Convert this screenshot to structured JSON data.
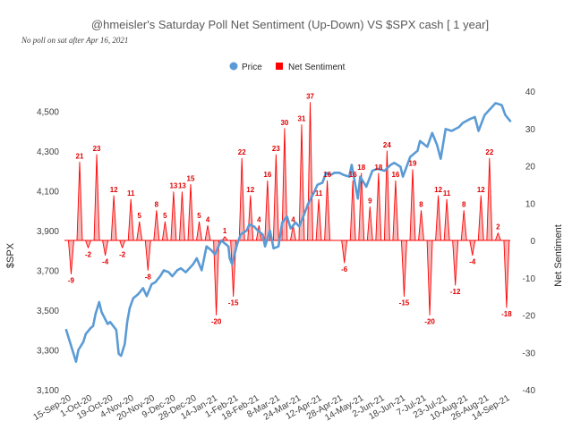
{
  "chart_data": {
    "type": "line",
    "title": "@hmeisler's Saturday Poll Net Sentiment (Up-Down) VS $SPX  cash [ 1 year]",
    "subtitle": "No poll on sat after  Apr 16, 2021",
    "ylabel_left": "$SPX",
    "ylabel_right": "Net Sentiment",
    "ylim_left": [
      3100,
      4600
    ],
    "ylim_right": [
      -40,
      40
    ],
    "yticks_left": [
      "3,100",
      "3,300",
      "3,500",
      "3,700",
      "3,900",
      "4,100",
      "4,300",
      "4,500"
    ],
    "yticks_right": [
      "-40",
      "-30",
      "-20",
      "-10",
      "0",
      "10",
      "20",
      "30",
      "40"
    ],
    "x_tick_labels": [
      "15-Sep-20",
      "1-Oct-20",
      "19-Oct-20",
      "4-Nov-20",
      "20-Nov-20",
      "9-Dec-20",
      "28-Dec-20",
      "14-Jan-21",
      "1-Feb-21",
      "18-Feb-21",
      "8-Mar-21",
      "24-Mar-21",
      "12-Apr-21",
      "28-Apr-21",
      "14-May-21",
      "2-Jun-21",
      "18-Jun-21",
      "7-Jul-21",
      "23-Jul-21",
      "10-Aug-21",
      "26-Aug-21",
      "14-Sep-21"
    ],
    "legend_position": "top-center",
    "colors": {
      "price": "#5b9bd5",
      "sentiment": "#ff0000",
      "sentiment_fill": "#f4b6b6"
    },
    "series": [
      {
        "name": "Price",
        "axis": "left",
        "x": [
          "2020-09-15",
          "2020-09-17",
          "2020-09-21",
          "2020-09-23",
          "2020-09-25",
          "2020-09-29",
          "2020-10-01",
          "2020-10-05",
          "2020-10-07",
          "2020-10-09",
          "2020-10-12",
          "2020-10-14",
          "2020-10-19",
          "2020-10-21",
          "2020-10-26",
          "2020-10-28",
          "2020-10-30",
          "2020-11-02",
          "2020-11-04",
          "2020-11-06",
          "2020-11-09",
          "2020-11-13",
          "2020-11-17",
          "2020-11-20",
          "2020-11-24",
          "2020-11-27",
          "2020-12-01",
          "2020-12-04",
          "2020-12-08",
          "2020-12-11",
          "2020-12-15",
          "2020-12-18",
          "2020-12-22",
          "2020-12-28",
          "2020-12-31",
          "2021-01-04",
          "2021-01-06",
          "2021-01-08",
          "2021-01-12",
          "2021-01-15",
          "2021-01-20",
          "2021-01-22",
          "2021-01-26",
          "2021-01-27",
          "2021-01-29",
          "2021-02-02",
          "2021-02-05",
          "2021-02-10",
          "2021-02-12",
          "2021-02-16",
          "2021-02-19",
          "2021-02-23",
          "2021-02-25",
          "2021-03-01",
          "2021-03-04",
          "2021-03-08",
          "2021-03-11",
          "2021-03-15",
          "2021-03-18",
          "2021-03-22",
          "2021-03-25",
          "2021-03-29",
          "2021-04-01",
          "2021-04-06",
          "2021-04-09",
          "2021-04-13",
          "2021-04-16",
          "2021-04-20",
          "2021-04-23",
          "2021-04-27",
          "2021-04-30",
          "2021-05-05",
          "2021-05-07",
          "2021-05-12",
          "2021-05-14",
          "2021-05-19",
          "2021-05-24",
          "2021-05-28",
          "2021-06-03",
          "2021-06-08",
          "2021-06-11",
          "2021-06-16",
          "2021-06-18",
          "2021-06-24",
          "2021-06-30",
          "2021-07-02",
          "2021-07-08",
          "2021-07-12",
          "2021-07-16",
          "2021-07-19",
          "2021-07-23",
          "2021-07-28",
          "2021-08-03",
          "2021-08-06",
          "2021-08-12",
          "2021-08-16",
          "2021-08-19",
          "2021-08-24",
          "2021-08-30",
          "2021-09-02",
          "2021-09-07",
          "2021-09-10",
          "2021-09-14"
        ],
        "values": [
          3400,
          3360,
          3280,
          3240,
          3300,
          3340,
          3380,
          3410,
          3420,
          3480,
          3540,
          3490,
          3430,
          3440,
          3400,
          3280,
          3270,
          3330,
          3440,
          3510,
          3560,
          3580,
          3610,
          3570,
          3630,
          3640,
          3670,
          3700,
          3690,
          3670,
          3700,
          3710,
          3690,
          3730,
          3760,
          3700,
          3760,
          3820,
          3800,
          3780,
          3850,
          3840,
          3820,
          3760,
          3730,
          3830,
          3880,
          3900,
          3930,
          3920,
          3900,
          3880,
          3820,
          3900,
          3810,
          3820,
          3940,
          3970,
          3910,
          3940,
          3920,
          3980,
          4030,
          4090,
          4130,
          4140,
          4190,
          4180,
          4190,
          4190,
          4180,
          4170,
          4230,
          4060,
          4170,
          4120,
          4200,
          4210,
          4200,
          4230,
          4240,
          4220,
          4170,
          4270,
          4300,
          4350,
          4320,
          4390,
          4330,
          4260,
          4410,
          4400,
          4420,
          4440,
          4460,
          4470,
          4400,
          4480,
          4520,
          4540,
          4530,
          4480,
          4450
        ]
      },
      {
        "name": "Net Sentiment",
        "axis": "right",
        "x": [
          "2020-09-19",
          "2020-09-26",
          "2020-10-03",
          "2020-10-10",
          "2020-10-17",
          "2020-10-24",
          "2020-10-31",
          "2020-11-07",
          "2020-11-14",
          "2020-11-21",
          "2020-11-28",
          "2020-12-05",
          "2020-12-12",
          "2020-12-19",
          "2020-12-26",
          "2021-01-02",
          "2021-01-09",
          "2021-01-16",
          "2021-01-23",
          "2021-01-30",
          "2021-02-06",
          "2021-02-13",
          "2021-02-20",
          "2021-02-27",
          "2021-03-06",
          "2021-03-13",
          "2021-03-20",
          "2021-03-27",
          "2021-04-03",
          "2021-04-10",
          "2021-04-17",
          "2021-05-01",
          "2021-05-08",
          "2021-05-15",
          "2021-05-22",
          "2021-05-29",
          "2021-06-05",
          "2021-06-12",
          "2021-06-19",
          "2021-06-26",
          "2021-07-03",
          "2021-07-10",
          "2021-07-17",
          "2021-07-24",
          "2021-07-31",
          "2021-08-07",
          "2021-08-14",
          "2021-08-21",
          "2021-08-28",
          "2021-09-04",
          "2021-09-11"
        ],
        "values": [
          -9,
          21,
          -2,
          23,
          -4,
          12,
          -2,
          11,
          5,
          -8,
          8,
          5,
          13,
          13,
          15,
          5,
          4,
          -20,
          1,
          -15,
          22,
          12,
          4,
          16,
          23,
          30,
          4,
          31,
          37,
          11,
          16,
          -6,
          16,
          18,
          9,
          18,
          24,
          16,
          -15,
          19,
          8,
          -20,
          12,
          11,
          -12,
          8,
          -4,
          12,
          22,
          2,
          -18
        ]
      }
    ]
  }
}
